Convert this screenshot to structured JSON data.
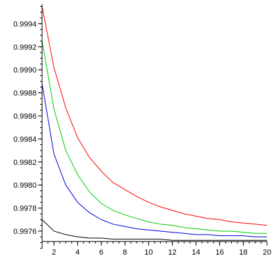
{
  "chart_data": {
    "type": "line",
    "title": "",
    "xlabel": "",
    "ylabel": "",
    "xlim": [
      1,
      20
    ],
    "ylim": [
      0.99745,
      0.99957
    ],
    "x_axis_at_y": 0.99751,
    "grid": false,
    "legend": "none",
    "x_ticks": [
      2,
      4,
      6,
      8,
      10,
      12,
      14,
      16,
      18,
      20
    ],
    "x_minor_step": 0.5,
    "y_ticks": [
      0.9976,
      0.9978,
      0.998,
      0.9982,
      0.9984,
      0.9986,
      0.9988,
      0.999,
      0.9992,
      0.9994
    ],
    "y_tick_labels": [
      "0.9976",
      "0.9978",
      "0.9980",
      "0.9982",
      "0.9984",
      "0.9986",
      "0.9988",
      "0.9990",
      "0.9992",
      "0.9994"
    ],
    "y_minor_step": 5e-05,
    "x": [
      1,
      2,
      3,
      4,
      5,
      6,
      7,
      8,
      9,
      10,
      11,
      12,
      13,
      14,
      15,
      16,
      17,
      18,
      19,
      20
    ],
    "series": [
      {
        "color": "#ff0000",
        "values": [
          0.99955,
          0.99902,
          0.99867,
          0.99841,
          0.99824,
          0.99812,
          0.99802,
          0.99796,
          0.9979,
          0.99785,
          0.99781,
          0.99778,
          0.99775,
          0.99773,
          0.99771,
          0.9977,
          0.99768,
          0.99767,
          0.99766,
          0.99765
        ]
      },
      {
        "color": "#00cc00",
        "values": [
          0.99925,
          0.99866,
          0.9983,
          0.99809,
          0.99794,
          0.99784,
          0.99778,
          0.99774,
          0.99771,
          0.99768,
          0.99766,
          0.99765,
          0.99763,
          0.99762,
          0.99761,
          0.9976,
          0.9976,
          0.99759,
          0.99758,
          0.99758
        ]
      },
      {
        "color": "#0000dd",
        "values": [
          0.99888,
          0.99827,
          0.998,
          0.99785,
          0.99776,
          0.9977,
          0.99766,
          0.99764,
          0.99762,
          0.99761,
          0.9976,
          0.99759,
          0.99758,
          0.99757,
          0.99757,
          0.99756,
          0.99756,
          0.99756,
          0.99755,
          0.99755
        ]
      },
      {
        "color": "#000000",
        "values": [
          0.9977,
          0.9976,
          0.99757,
          0.99755,
          0.99754,
          0.99754,
          0.99753,
          0.99753,
          0.99753,
          0.99753,
          0.99753,
          0.99752,
          0.99752,
          0.99752,
          0.99752,
          0.99752,
          0.99752,
          0.99752,
          0.99752,
          0.99752
        ]
      }
    ]
  }
}
